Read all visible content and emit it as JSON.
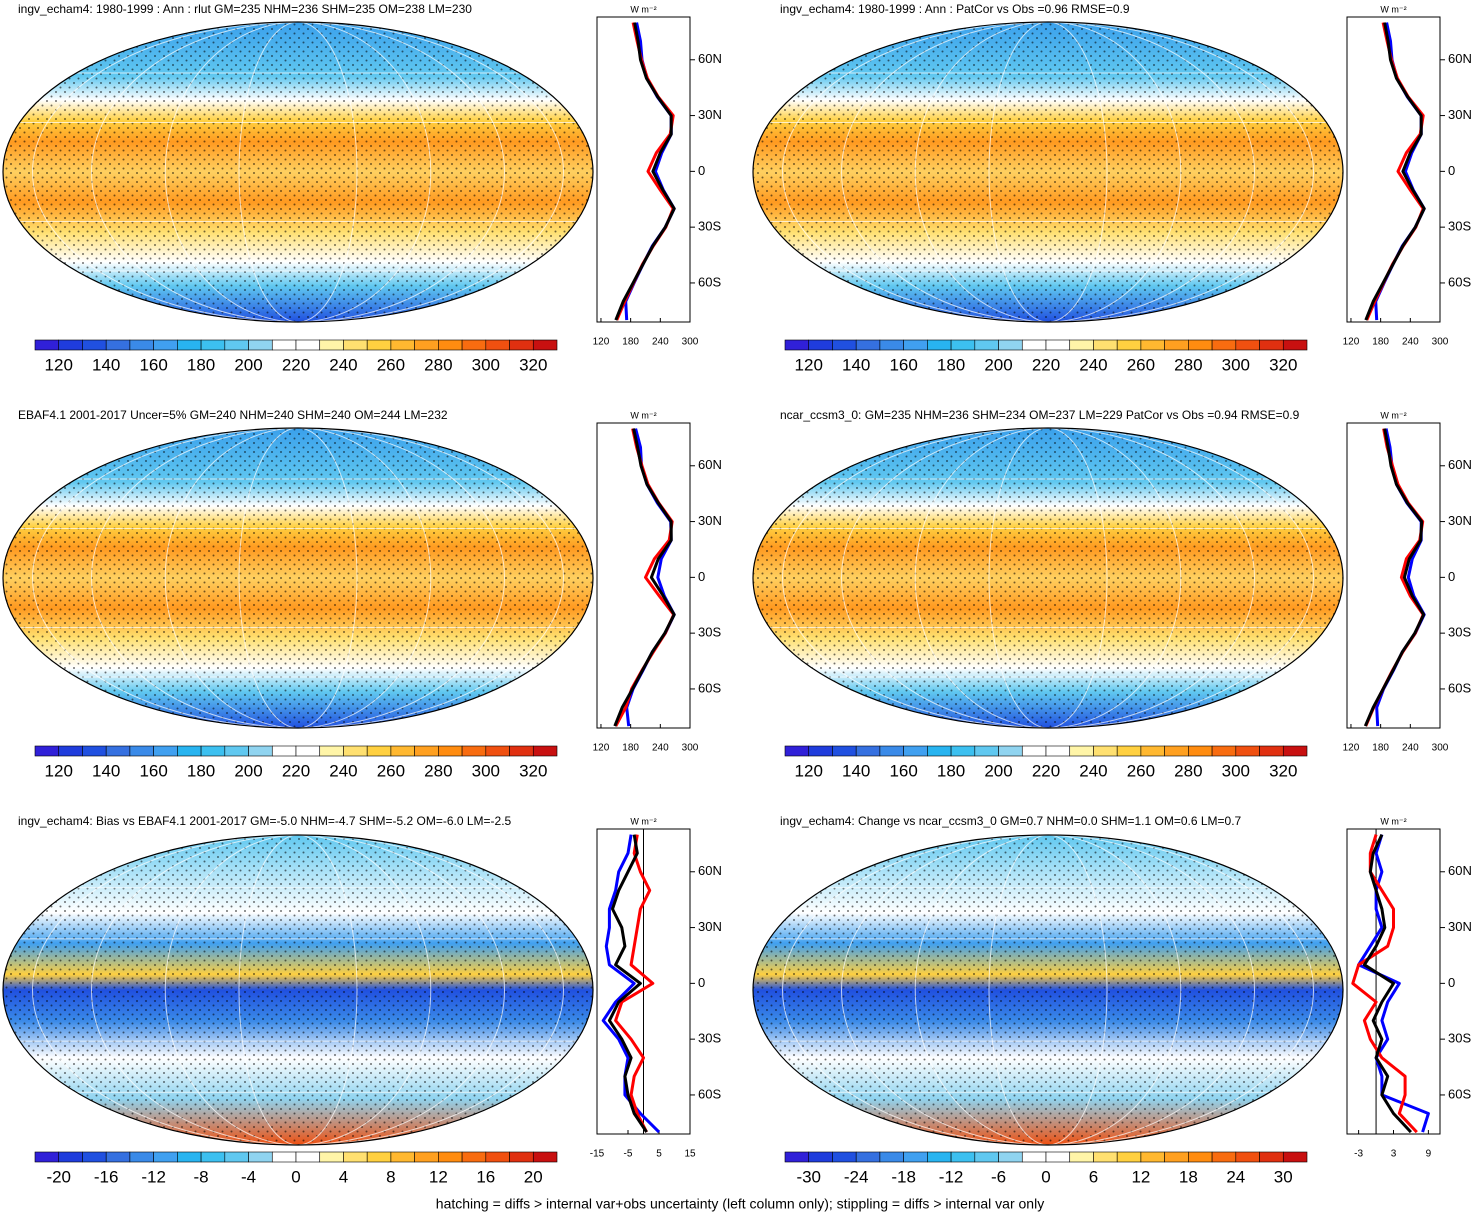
{
  "palette": [
    "#3020d8",
    "#1f3cdc",
    "#2050e0",
    "#3570e0",
    "#3a8ae8",
    "#40a0f0",
    "#28b4f0",
    "#3cc0f0",
    "#60c8f0",
    "#90d4f0",
    "#ffffff",
    "#ffffff",
    "#fff5a8",
    "#ffe070",
    "#ffd040",
    "#ffb830",
    "#ffa020",
    "#ff8c10",
    "#f86c10",
    "#f05010",
    "#e03010",
    "#c81010"
  ],
  "footer": "hatching = diffs > internal var+obs uncertainty (left column only); stippling = diffs > internal var only",
  "panels": [
    {
      "title": "ingv_echam4: 1980-1999 : Ann : rlut GM=235 NHM=236 SHM=235 OM=238 LM=230",
      "colorbar": {
        "labels": [
          120,
          140,
          160,
          180,
          200,
          220,
          240,
          260,
          280,
          300,
          320
        ]
      },
      "zonal": {
        "unit": "W m⁻²",
        "lat": [
          80,
          70,
          60,
          50,
          40,
          30,
          20,
          10,
          0,
          -10,
          -20,
          -30,
          -40,
          -50,
          -60,
          -70,
          -80
        ],
        "ylim": [
          -81,
          83
        ],
        "yticks": [
          {
            "value": 60,
            "label": "60N"
          },
          {
            "value": 30,
            "label": "30N"
          },
          0,
          {
            "value": -30,
            "label": "30S"
          },
          {
            "value": -60,
            "label": "60S"
          }
        ],
        "xlim": [
          112,
          300
        ],
        "xticks": [
          120,
          180,
          240,
          300
        ],
        "series": [
          {
            "color": "#0000ff",
            "values": [
              192,
              200,
              203,
              213,
              234,
              262,
              262,
              243,
              230,
              246,
              268,
              250,
              224,
              205,
              187,
              170,
              172
            ]
          },
          {
            "color": "#ff0000",
            "values": [
              185,
              193,
              202,
              214,
              236,
              266,
              260,
              232,
              215,
              240,
              266,
              251,
              226,
              204,
              186,
              168,
              152
            ]
          },
          {
            "color": "#000000",
            "values": [
              188,
              195,
              200,
              212,
              235,
              262,
              262,
              240,
              225,
              245,
              268,
              250,
              225,
              205,
              185,
              165,
              150
            ]
          }
        ]
      }
    },
    {
      "title": "ingv_echam4: 1980-1999 : Ann : PatCor vs Obs =0.96 RMSE=0.9",
      "colorbar": {
        "labels": [
          120,
          140,
          160,
          180,
          200,
          220,
          240,
          260,
          280,
          300,
          320
        ]
      },
      "zonal": {
        "unit": "W m⁻²",
        "lat": [
          80,
          70,
          60,
          50,
          40,
          30,
          20,
          10,
          0,
          -10,
          -20,
          -30,
          -40,
          -50,
          -60,
          -70,
          -80
        ],
        "ylim": [
          -81,
          83
        ],
        "yticks": [
          {
            "value": 60,
            "label": "60N"
          },
          {
            "value": 30,
            "label": "30N"
          },
          0,
          {
            "value": -30,
            "label": "30S"
          },
          {
            "value": -60,
            "label": "60S"
          }
        ],
        "xlim": [
          112,
          300
        ],
        "xticks": [
          120,
          180,
          240,
          300
        ],
        "series": [
          {
            "color": "#0000ff",
            "values": [
              192,
              200,
              203,
              213,
              234,
              262,
              262,
              243,
              230,
              246,
              268,
              250,
              224,
              205,
              187,
              170,
              172
            ]
          },
          {
            "color": "#ff0000",
            "values": [
              185,
              193,
              202,
              214,
              236,
              266,
              260,
              232,
              215,
              240,
              266,
              251,
              226,
              204,
              186,
              168,
              152
            ]
          },
          {
            "color": "#000000",
            "values": [
              188,
              195,
              200,
              212,
              235,
              262,
              262,
              240,
              225,
              245,
              268,
              250,
              225,
              205,
              185,
              165,
              150
            ]
          }
        ]
      }
    },
    {
      "title": "EBAF4.1 2001-2017 Uncer=5% GM=240 NHM=240 SHM=240 OM=244 LM=232",
      "colorbar": {
        "labels": [
          120,
          140,
          160,
          180,
          200,
          220,
          240,
          260,
          280,
          300,
          320
        ]
      },
      "zonal": {
        "unit": "W m⁻²",
        "lat": [
          80,
          70,
          60,
          50,
          40,
          30,
          20,
          10,
          0,
          -10,
          -20,
          -30,
          -40,
          -50,
          -60,
          -70,
          -80
        ],
        "ylim": [
          -81,
          83
        ],
        "yticks": [
          {
            "value": 60,
            "label": "60N"
          },
          {
            "value": 30,
            "label": "30N"
          },
          0,
          {
            "value": -30,
            "label": "30S"
          },
          {
            "value": -60,
            "label": "60S"
          }
        ],
        "xlim": [
          112,
          300
        ],
        "xticks": [
          120,
          180,
          240,
          300
        ],
        "series": [
          {
            "color": "#0000ff",
            "values": [
              190,
              200,
              202,
              213,
              234,
              261,
              262,
              242,
              235,
              248,
              268,
              250,
              224,
              205,
              185,
              172,
              176
            ]
          },
          {
            "color": "#ff0000",
            "values": [
              184,
              192,
              203,
              215,
              237,
              264,
              258,
              228,
              210,
              238,
              267,
              250,
              226,
              203,
              182,
              170,
              150
            ]
          },
          {
            "color": "#000000",
            "values": [
              186,
              194,
              201,
              213,
              236,
              262,
              262,
              236,
              222,
              246,
              268,
              249,
              224,
              204,
              184,
              163,
              148
            ]
          }
        ]
      }
    },
    {
      "title": "ncar_ccsm3_0: GM=235 NHM=236 SHM=234 OM=237 LM=229 PatCor vs Obs =0.94 RMSE=0.9",
      "colorbar": {
        "labels": [
          120,
          140,
          160,
          180,
          200,
          220,
          240,
          260,
          280,
          300,
          320
        ]
      },
      "zonal": {
        "unit": "W m⁻²",
        "lat": [
          80,
          70,
          60,
          50,
          40,
          30,
          20,
          10,
          0,
          -10,
          -20,
          -30,
          -40,
          -50,
          -60,
          -70,
          -80
        ],
        "ylim": [
          -81,
          83
        ],
        "yticks": [
          {
            "value": 60,
            "label": "60N"
          },
          {
            "value": 30,
            "label": "30N"
          },
          0,
          {
            "value": -30,
            "label": "30S"
          },
          {
            "value": -60,
            "label": "60S"
          }
        ],
        "xlim": [
          112,
          300
        ],
        "xticks": [
          120,
          180,
          240,
          300
        ],
        "series": [
          {
            "color": "#0000ff",
            "values": [
              191,
              199,
              203,
              212,
              233,
              262,
              262,
              244,
              236,
              247,
              268,
              250,
              224,
              206,
              186,
              172,
              174
            ]
          },
          {
            "color": "#ff0000",
            "values": [
              186,
              193,
              204,
              215,
              236,
              265,
              259,
              232,
              222,
              240,
              266,
              250,
              225,
              204,
              185,
              166,
              150
            ]
          },
          {
            "color": "#000000",
            "values": [
              188,
              195,
              201,
              212,
              234,
              263,
              261,
              238,
              228,
              244,
              267,
              249,
              224,
              205,
              185,
              165,
              149
            ]
          }
        ]
      }
    },
    {
      "title": "ingv_echam4: Bias vs EBAF4.1 2001-2017 GM=-5.0 NHM=-4.7 SHM=-5.2 OM=-6.0 LM=-2.5",
      "colorbar": {
        "labels": [
          -20,
          -16,
          -12,
          -8,
          -4,
          0,
          4,
          8,
          12,
          16,
          20
        ]
      },
      "zonal": {
        "unit": "W m⁻²",
        "lat": [
          80,
          70,
          60,
          50,
          40,
          30,
          20,
          10,
          0,
          -10,
          -20,
          -30,
          -40,
          -50,
          -60,
          -70,
          -80
        ],
        "ylim": [
          -81,
          83
        ],
        "yticks": [
          {
            "value": 60,
            "label": "60N"
          },
          {
            "value": 30,
            "label": "30N"
          },
          0,
          {
            "value": -30,
            "label": "30S"
          },
          {
            "value": -60,
            "label": "60S"
          }
        ],
        "xlim": [
          -15,
          15
        ],
        "xticks": [
          -15,
          -5,
          5,
          15
        ],
        "series": [
          {
            "color": "#0000ff",
            "values": [
              -4,
              -5,
              -8,
              -9,
              -11,
              -11,
              -12,
              -11,
              -3,
              -9,
              -13,
              -8,
              -5,
              -6,
              -6,
              -1,
              5
            ]
          },
          {
            "color": "#ff0000",
            "values": [
              -2,
              -3,
              -1,
              2,
              -1,
              -2,
              -3,
              -4,
              3,
              -7,
              -9,
              -4,
              0,
              -3,
              -4,
              -2,
              1
            ]
          },
          {
            "color": "#000000",
            "values": [
              -3,
              -2,
              -5,
              -8,
              -10,
              -7,
              -6,
              -9,
              -1,
              -8,
              -11,
              -7,
              -4,
              -6,
              -5,
              -3,
              1
            ]
          }
        ]
      }
    },
    {
      "title": "ingv_echam4: Change vs ncar_ccsm3_0 GM=0.7 NHM=0.0 SHM=1.1 OM=0.6 LM=0.7",
      "colorbar": {
        "labels": [
          -30,
          -24,
          -18,
          -12,
          -6,
          0,
          6,
          12,
          18,
          24,
          30
        ]
      },
      "zonal": {
        "unit": "W m⁻²",
        "lat": [
          80,
          70,
          60,
          50,
          40,
          30,
          20,
          10,
          0,
          -10,
          -20,
          -30,
          -40,
          -50,
          -60,
          -70,
          -80
        ],
        "ylim": [
          -81,
          83
        ],
        "yticks": [
          {
            "value": 60,
            "label": "60N"
          },
          {
            "value": 30,
            "label": "30N"
          },
          0,
          {
            "value": -30,
            "label": "30S"
          },
          {
            "value": -60,
            "label": "60S"
          }
        ],
        "xlim": [
          -5,
          11
        ],
        "xticks": [
          -3,
          3,
          9
        ],
        "series": [
          {
            "color": "#0000ff",
            "values": [
              1,
              0,
              1,
              0,
              0,
              1,
              -1,
              -3,
              4,
              2,
              1,
              2,
              0,
              1,
              1,
              9,
              8
            ]
          },
          {
            "color": "#ff0000",
            "values": [
              0,
              -1,
              -1,
              1,
              3,
              3,
              2,
              -3,
              -4,
              0,
              -2,
              -1,
              1,
              5,
              5,
              4,
              7
            ]
          },
          {
            "color": "#000000",
            "values": [
              1,
              -0.5,
              -1,
              0,
              1,
              1.5,
              0,
              -2,
              3,
              1,
              -0.5,
              1,
              0,
              2,
              1,
              3,
              6
            ]
          }
        ]
      }
    }
  ]
}
